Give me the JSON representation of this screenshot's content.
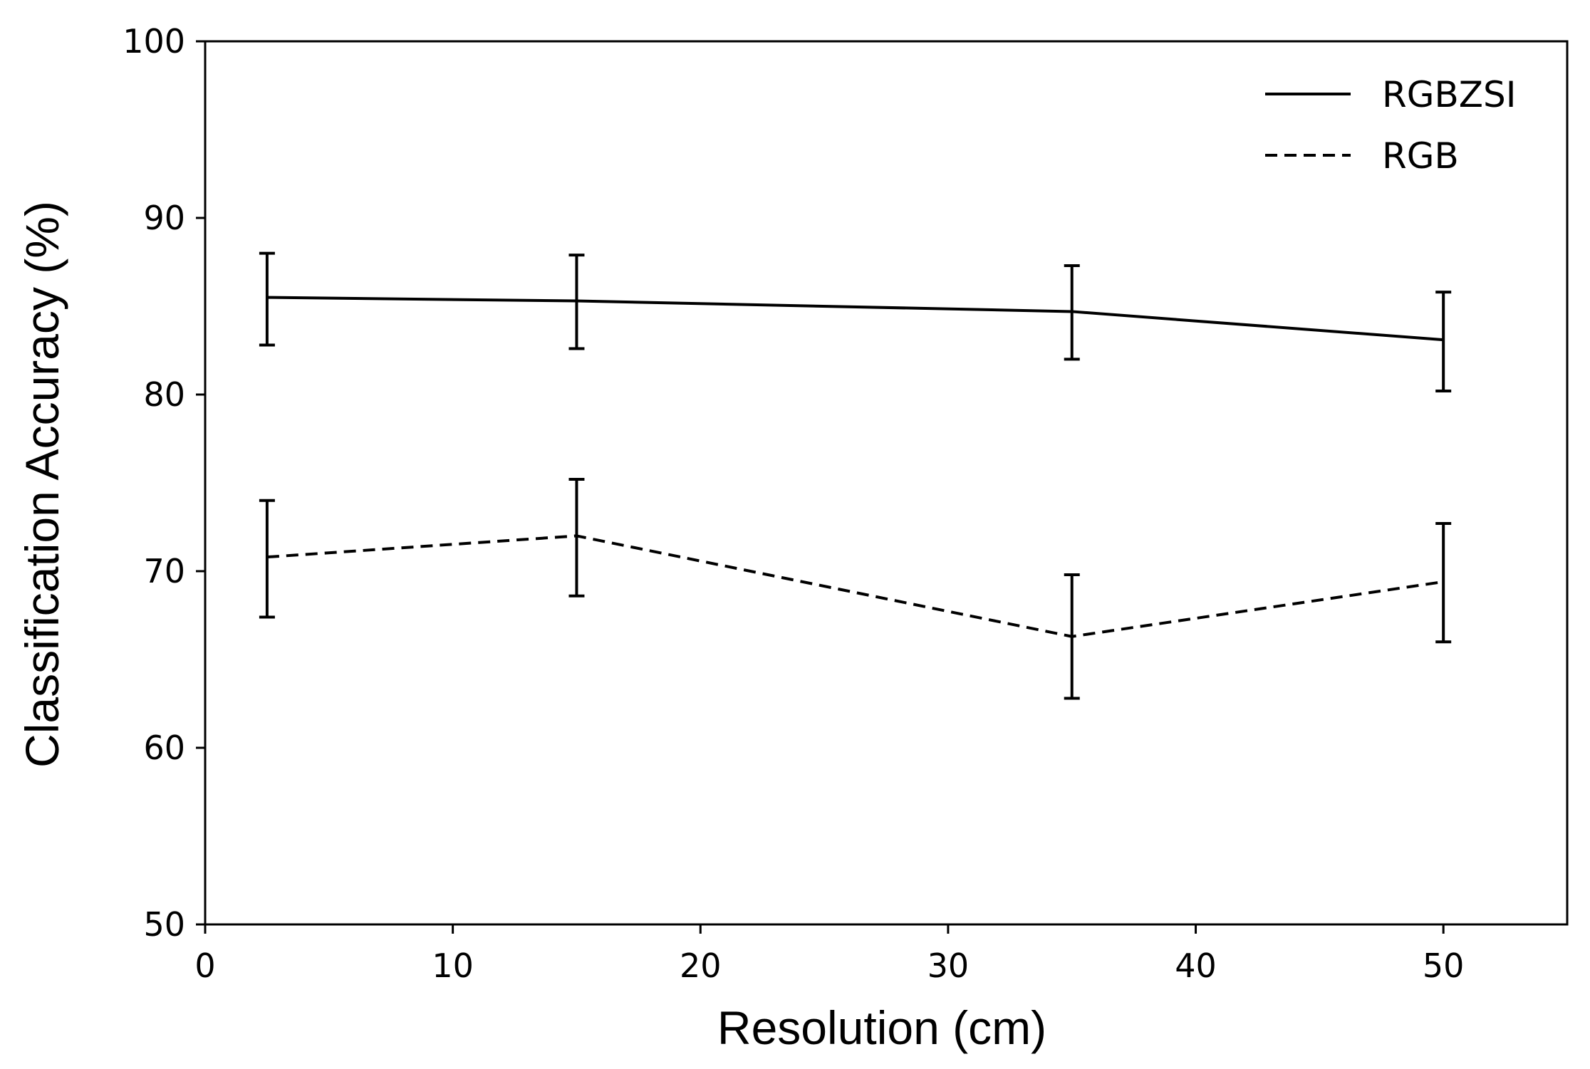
{
  "chart_data": {
    "type": "line",
    "title": "",
    "xlabel": "Resolution (cm)",
    "ylabel": "Classification Accuracy (%)",
    "xlim": [
      0,
      55
    ],
    "ylim": [
      50,
      100
    ],
    "xticks": [
      0,
      10,
      20,
      30,
      40,
      50
    ],
    "yticks": [
      50,
      60,
      70,
      80,
      90,
      100
    ],
    "xtick_labels": [
      "0",
      "10",
      "20",
      "30",
      "40",
      "50"
    ],
    "ytick_labels": [
      "50",
      "60",
      "70",
      "80",
      "90",
      "100"
    ],
    "grid": false,
    "legend_position": "top-right",
    "x": [
      2.5,
      15,
      35,
      50
    ],
    "series": [
      {
        "name": "RGBZSI",
        "style": "solid",
        "color": "#000000",
        "values": [
          85.5,
          85.3,
          84.7,
          83.1
        ],
        "error_low": [
          82.8,
          82.6,
          82.0,
          80.2
        ],
        "error_high": [
          88.0,
          87.9,
          87.3,
          85.8
        ]
      },
      {
        "name": "RGB",
        "style": "dashed",
        "color": "#000000",
        "values": [
          70.8,
          72.0,
          66.3,
          69.4
        ],
        "error_low": [
          67.4,
          68.6,
          62.8,
          66.0
        ],
        "error_high": [
          74.0,
          75.2,
          69.8,
          72.7
        ]
      }
    ]
  }
}
